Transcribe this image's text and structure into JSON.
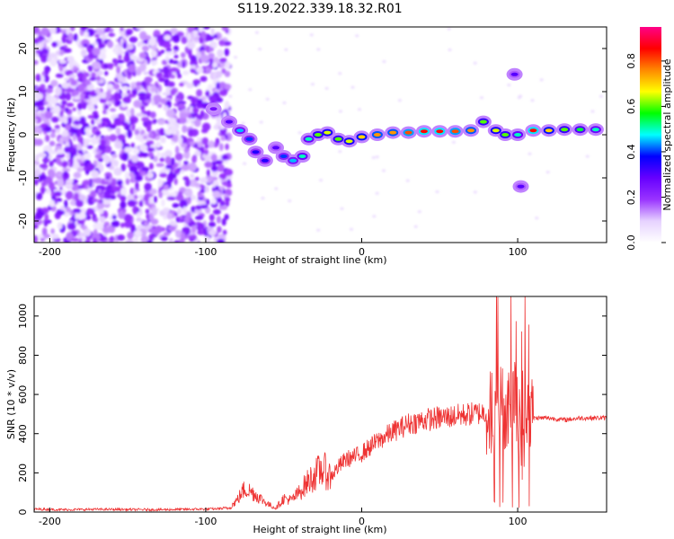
{
  "page": {
    "title": "S119.2022.339.18.32.R01"
  },
  "colorbar": {
    "label": "Normalized spectral amplitude",
    "tick_labels": [
      "0.0",
      "0.2",
      "0.4",
      "0.6",
      "0.8"
    ],
    "tick_values": [
      0.0,
      0.2,
      0.4,
      0.6,
      0.8
    ],
    "range": [
      0,
      0.95
    ],
    "colormap": [
      "#ffffff",
      "#e6d2ff",
      "#9933ff",
      "#6600ff",
      "#0000ff",
      "#00ffff",
      "#00ff00",
      "#ffff00",
      "#ff8800",
      "#ff0000",
      "#ff0088"
    ]
  },
  "chart_data": [
    {
      "type": "heatmap",
      "xlabel": "Height of straight line (km)",
      "ylabel": "Frequency (Hz)",
      "xlim": [
        -210,
        157
      ],
      "ylim": [
        -25,
        25
      ],
      "x_ticks": [
        -200,
        -100,
        0,
        100
      ],
      "x_tick_labels": [
        "-200",
        "-100",
        "0",
        "100"
      ],
      "y_ticks": [
        -20,
        -10,
        0,
        10,
        20
      ],
      "y_tick_labels": [
        "-20",
        "-10",
        "0",
        "10",
        "20"
      ],
      "signal_track": [
        {
          "x": -95,
          "y": 6,
          "amp": 0.25
        },
        {
          "x": -85,
          "y": 3,
          "amp": 0.3
        },
        {
          "x": -78,
          "y": 1,
          "amp": 0.45
        },
        {
          "x": -72,
          "y": -1,
          "amp": 0.4
        },
        {
          "x": -68,
          "y": -4,
          "amp": 0.35
        },
        {
          "x": -62,
          "y": -6,
          "amp": 0.35
        },
        {
          "x": -55,
          "y": -3,
          "amp": 0.3
        },
        {
          "x": -50,
          "y": -5,
          "amp": 0.4
        },
        {
          "x": -44,
          "y": -6,
          "amp": 0.45
        },
        {
          "x": -38,
          "y": -5,
          "amp": 0.5
        },
        {
          "x": -34,
          "y": -1,
          "amp": 0.5
        },
        {
          "x": -28,
          "y": 0,
          "amp": 0.6
        },
        {
          "x": -22,
          "y": 0.5,
          "amp": 0.65
        },
        {
          "x": -15,
          "y": -1,
          "amp": 0.6
        },
        {
          "x": -8,
          "y": -1.5,
          "amp": 0.65
        },
        {
          "x": 0,
          "y": -0.5,
          "amp": 0.7
        },
        {
          "x": 10,
          "y": 0,
          "amp": 0.75
        },
        {
          "x": 20,
          "y": 0.5,
          "amp": 0.75
        },
        {
          "x": 30,
          "y": 0.5,
          "amp": 0.8
        },
        {
          "x": 40,
          "y": 0.8,
          "amp": 0.85
        },
        {
          "x": 50,
          "y": 0.8,
          "amp": 0.85
        },
        {
          "x": 60,
          "y": 0.8,
          "amp": 0.8
        },
        {
          "x": 70,
          "y": 1,
          "amp": 0.75
        },
        {
          "x": 78,
          "y": 3,
          "amp": 0.6
        },
        {
          "x": 86,
          "y": 1,
          "amp": 0.65
        },
        {
          "x": 92,
          "y": 0,
          "amp": 0.6
        },
        {
          "x": 98,
          "y": 14,
          "amp": 0.3
        },
        {
          "x": 100,
          "y": 0,
          "amp": 0.5
        },
        {
          "x": 102,
          "y": -12,
          "amp": 0.3
        },
        {
          "x": 110,
          "y": 1,
          "amp": 0.85
        },
        {
          "x": 120,
          "y": 1,
          "amp": 0.7
        },
        {
          "x": 130,
          "y": 1.2,
          "amp": 0.6
        },
        {
          "x": 140,
          "y": 1.2,
          "amp": 0.55
        },
        {
          "x": 150,
          "y": 1.2,
          "amp": 0.5
        }
      ]
    },
    {
      "type": "line",
      "xlabel": "Height of straight line (km)",
      "ylabel": "SNR (10 * v/v)",
      "xlim": [
        -210,
        157
      ],
      "ylim": [
        0,
        1100
      ],
      "x_ticks": [
        -200,
        -100,
        0,
        100
      ],
      "x_tick_labels": [
        "-200",
        "-100",
        "0",
        "100"
      ],
      "y_ticks": [
        0,
        200,
        400,
        600,
        800,
        1000
      ],
      "y_tick_labels": [
        "0",
        "200",
        "400",
        "600",
        "800",
        "1000"
      ],
      "line_color": "#ee3333",
      "series": [
        {
          "x": [
            -210,
            -190,
            -170,
            -150,
            -130,
            -110,
            -95,
            -85,
            -80,
            -75,
            -70,
            -65,
            -60,
            -55,
            -50,
            -45,
            -40,
            -35,
            -30,
            -25,
            -20,
            -15,
            -10,
            -5,
            0,
            10,
            20,
            30,
            40,
            50,
            60,
            70,
            80,
            85,
            88,
            92,
            95,
            98,
            100,
            103,
            106,
            110,
            120,
            130,
            140,
            157
          ],
          "y": [
            15,
            12,
            14,
            13,
            12,
            14,
            16,
            20,
            60,
            120,
            100,
            70,
            40,
            20,
            70,
            60,
            100,
            150,
            190,
            220,
            180,
            230,
            270,
            280,
            300,
            360,
            410,
            450,
            470,
            480,
            490,
            500,
            510,
            520,
            530,
            540,
            560,
            600,
            500,
            300,
            560,
            480,
            480,
            470,
            480,
            480
          ]
        }
      ]
    }
  ]
}
